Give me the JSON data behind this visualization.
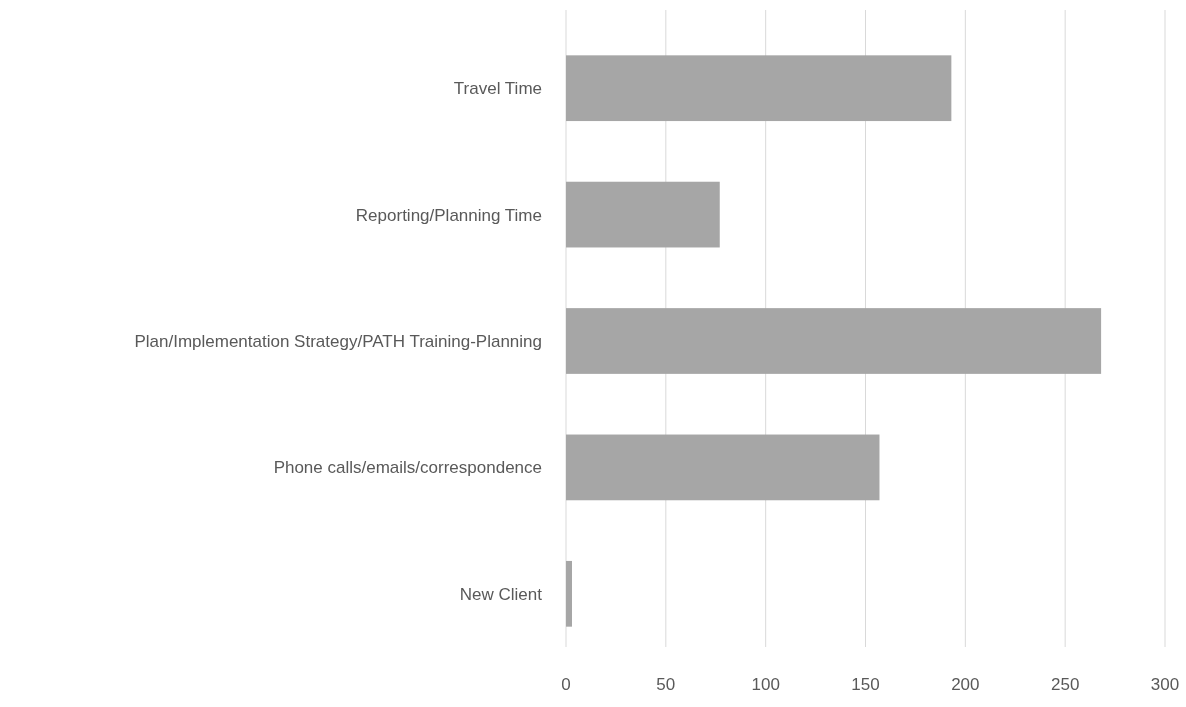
{
  "chart_data": {
    "type": "bar",
    "orientation": "horizontal",
    "categories": [
      "Travel Time",
      "Reporting/Planning Time",
      "Plan/Implementation Strategy/PATH Training-Planning",
      "Phone calls/emails/correspondence",
      "New Client"
    ],
    "values": [
      193,
      77,
      268,
      157,
      3
    ],
    "color": "#a6a6a6",
    "xlim": [
      0,
      300
    ],
    "xticks": [
      0,
      50,
      100,
      150,
      200,
      250,
      300
    ],
    "grid": "x"
  }
}
